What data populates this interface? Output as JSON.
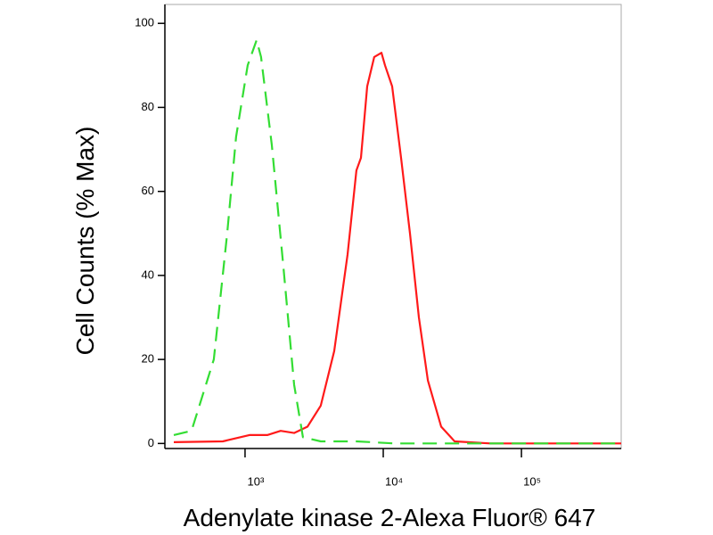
{
  "chart_data": {
    "type": "line",
    "xlabel": "Adenylate kinase 2-Alexa Fluor® 647",
    "ylabel": "Cell Counts (% Max)",
    "xscale": "log",
    "xlim": [
      263,
      527000
    ],
    "ylim": [
      -1.2,
      104.5
    ],
    "xticks": [
      {
        "value": 1000,
        "label": "10³"
      },
      {
        "value": 10000,
        "label": "10⁴"
      },
      {
        "value": 100000,
        "label": "10⁵"
      }
    ],
    "yticks": [
      0,
      20,
      40,
      60,
      80,
      100
    ],
    "series": [
      {
        "color": "#ff1a1a",
        "dash": false,
        "x": [
          305,
          690,
          1077,
          1449,
          1811,
          2264,
          2831,
          3532,
          4416,
          5521,
          6393,
          6900,
          7655,
          8611,
          9706,
          10300,
          11600,
          13460,
          15620,
          18120,
          21030,
          26260,
          32840,
          59450,
          527000
        ],
        "values": [
          0.3,
          0.5,
          2,
          2,
          3,
          2.5,
          4,
          9,
          22,
          45,
          65,
          68,
          85,
          92,
          93,
          90,
          85,
          68,
          50,
          30,
          15,
          4,
          0.5,
          0,
          0
        ]
      },
      {
        "color": "#33dd33",
        "dash": true,
        "x": [
          305,
          410,
          594,
          743,
          861,
          1045,
          1213,
          1306,
          1563,
          1894,
          2264,
          2625,
          3532,
          6393,
          12000,
          527000
        ],
        "values": [
          2,
          3,
          20,
          50,
          73,
          90,
          96,
          92,
          71,
          42,
          14,
          1.5,
          0.5,
          0.5,
          0,
          0
        ]
      }
    ]
  }
}
